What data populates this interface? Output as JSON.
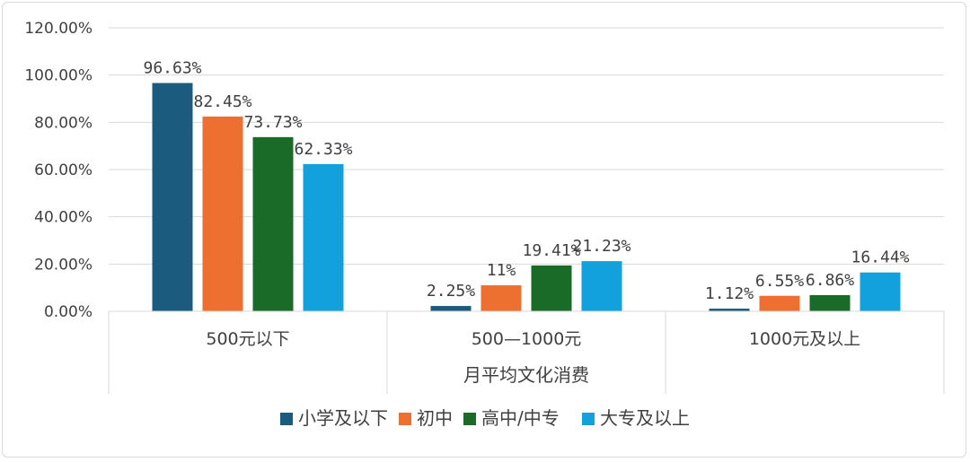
{
  "chart_data": {
    "type": "bar",
    "categories": [
      "500元以下",
      "500—1000元",
      "1000元及以上"
    ],
    "series": [
      {
        "name": "小学及以下",
        "values": [
          96.63,
          2.25,
          1.12
        ],
        "labels": [
          "96.63%",
          "2.25%",
          "1.12%"
        ],
        "color": "#1b5b7d"
      },
      {
        "name": "初中",
        "values": [
          82.45,
          11,
          6.55
        ],
        "labels": [
          "82.45%",
          "11%",
          "6.55%"
        ],
        "color": "#ed7031"
      },
      {
        "name": "高中/中专",
        "values": [
          73.73,
          19.41,
          6.86
        ],
        "labels": [
          "73.73%",
          "19.41%",
          "6.86%"
        ],
        "color": "#196b27"
      },
      {
        "name": "大专及以上",
        "values": [
          62.33,
          21.23,
          16.44
        ],
        "labels": [
          "62.33%",
          "21.23%",
          "16.44%"
        ],
        "color": "#12a1dc"
      }
    ],
    "xlabel": "月平均文化消费",
    "ylabel": "",
    "ylim": [
      0,
      120
    ],
    "yticks": [
      0,
      20,
      40,
      60,
      80,
      100,
      120
    ],
    "ytick_labels": [
      "0.00%",
      "20.00%",
      "40.00%",
      "60.00%",
      "80.00%",
      "100.00%",
      "120.00%"
    ],
    "grid": true,
    "legend": "bottom"
  }
}
